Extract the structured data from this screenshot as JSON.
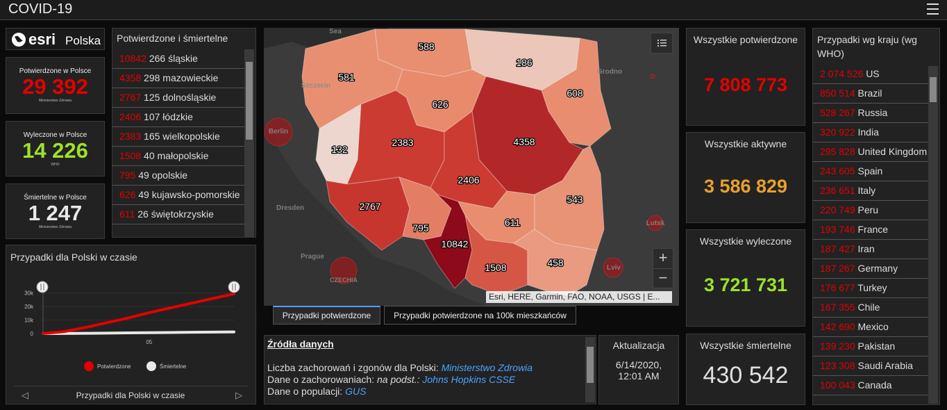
{
  "header": {
    "title": "COVID-19"
  },
  "logo": {
    "brand": "esri",
    "region": "Polska"
  },
  "poland_indicators": [
    {
      "label": "Potwierdzone w Polsce",
      "value": "29 392",
      "source": "Ministerstwo Zdrowia"
    },
    {
      "label": "Wyleczone w Polsce",
      "value": "14 226",
      "source": "WHO"
    },
    {
      "label": "Śmiertelne w Polsce",
      "value": "1 247",
      "source": "Ministerstwo Zdrowia"
    }
  ],
  "region_list": {
    "title": "Potwierdzone i śmiertelne",
    "rows": [
      {
        "confirmed": "10842",
        "deaths": "266",
        "name": "śląskie"
      },
      {
        "confirmed": "4358",
        "deaths": "298",
        "name": "mazowieckie"
      },
      {
        "confirmed": "2767",
        "deaths": "125",
        "name": "dolnośląskie"
      },
      {
        "confirmed": "2406",
        "deaths": "107",
        "name": "łódzkie"
      },
      {
        "confirmed": "2383",
        "deaths": "165",
        "name": "wielkopolskie"
      },
      {
        "confirmed": "1508",
        "deaths": "40",
        "name": "małopolskie"
      },
      {
        "confirmed": "795",
        "deaths": "49",
        "name": "opolskie"
      },
      {
        "confirmed": "626",
        "deaths": "49",
        "name": "kujawsko-pomorskie"
      },
      {
        "confirmed": "611",
        "deaths": "26",
        "name": "świętokrzyskie"
      }
    ]
  },
  "chart_data": {
    "type": "line",
    "title": "Przypadki dla Polski w czasie",
    "categories": [
      null,
      null,
      null,
      null,
      null,
      "05",
      null,
      null,
      null,
      null
    ],
    "series": [
      {
        "name": "Potwierdzone",
        "color": "#e30000",
        "values": [
          0,
          1500,
          4500,
          8000,
          11500,
          15500,
          19000,
          22500,
          26000,
          29392
        ]
      },
      {
        "name": "Śmiertelne",
        "color": "#e8e8e8",
        "values": [
          0,
          50,
          200,
          350,
          500,
          650,
          800,
          950,
          1100,
          1247
        ]
      }
    ],
    "ylim": [
      0,
      35000
    ],
    "yticks": [
      0,
      {
        "value": 10000,
        "label": "10k"
      },
      {
        "value": 20000,
        "label": "20k"
      },
      {
        "value": 30000,
        "label": "30k"
      }
    ],
    "footer": "Przypadki dla Polski w czasie"
  },
  "map": {
    "regions": [
      {
        "value": 588
      },
      {
        "value": 581
      },
      {
        "value": 186
      },
      {
        "value": 608
      },
      {
        "value": 626
      },
      {
        "value": 132
      },
      {
        "value": 2383
      },
      {
        "value": 4358
      },
      {
        "value": 2406
      },
      {
        "value": 2767
      },
      {
        "value": 795
      },
      {
        "value": 10842
      },
      {
        "value": 611
      },
      {
        "value": 543
      },
      {
        "value": 1508
      },
      {
        "value": 458
      }
    ],
    "place_labels": [
      "Sea",
      "Szczecin",
      "Berlin",
      "Dresden",
      "Prague",
      "CZECHIA",
      "Grodno",
      "Lviv",
      "Lutsk"
    ],
    "attribution": "Esri, HERE, Garmin, FAO, NOAA, USGS | E..."
  },
  "tabs": [
    "Przypadki potwierdzone",
    "Przypadki potwierdzone na 100k mieszkańców"
  ],
  "sources": {
    "title": "Źródła danych",
    "lines": [
      {
        "text": "Liczba zachorowań i zgonów dla Polski:",
        "link": "Ministerstwo Zdrowia"
      },
      {
        "text": "Dane o zachorowaniach:",
        "note": "na podst.:",
        "link": "Johns Hopkins CSSE"
      },
      {
        "text": "Dane o populacji:",
        "link": "GUS"
      }
    ]
  },
  "update": {
    "title": "Aktualizacja",
    "date": "6/14/2020,",
    "time": "12:01 AM"
  },
  "global_indicators": [
    {
      "label": "Wszystkie potwierdzone",
      "value": "7 808 773"
    },
    {
      "label": "Wszystkie aktywne",
      "value": "3 586 829"
    },
    {
      "label": "Wszystkie wyleczone",
      "value": "3 721 731"
    },
    {
      "label": "Wszystkie śmiertelne",
      "value": "430 542"
    }
  ],
  "country_list": {
    "title": "Przypadki wg kraju (wg WHO)",
    "rows": [
      {
        "cases": "2 074 526",
        "name": "US"
      },
      {
        "cases": "850 514",
        "name": "Brazil"
      },
      {
        "cases": "528 267",
        "name": "Russia"
      },
      {
        "cases": "320 922",
        "name": "India"
      },
      {
        "cases": "295 828",
        "name": "United Kingdom"
      },
      {
        "cases": "243 605",
        "name": "Spain"
      },
      {
        "cases": "236 651",
        "name": "Italy"
      },
      {
        "cases": "220 749",
        "name": "Peru"
      },
      {
        "cases": "193 746",
        "name": "France"
      },
      {
        "cases": "187 427",
        "name": "Iran"
      },
      {
        "cases": "187 267",
        "name": "Germany"
      },
      {
        "cases": "176 677",
        "name": "Turkey"
      },
      {
        "cases": "167 355",
        "name": "Chile"
      },
      {
        "cases": "142 690",
        "name": "Mexico"
      },
      {
        "cases": "139 230",
        "name": "Pakistan"
      },
      {
        "cases": "123 308",
        "name": "Saudi Arabia"
      },
      {
        "cases": "100 043",
        "name": "Canada"
      }
    ]
  }
}
